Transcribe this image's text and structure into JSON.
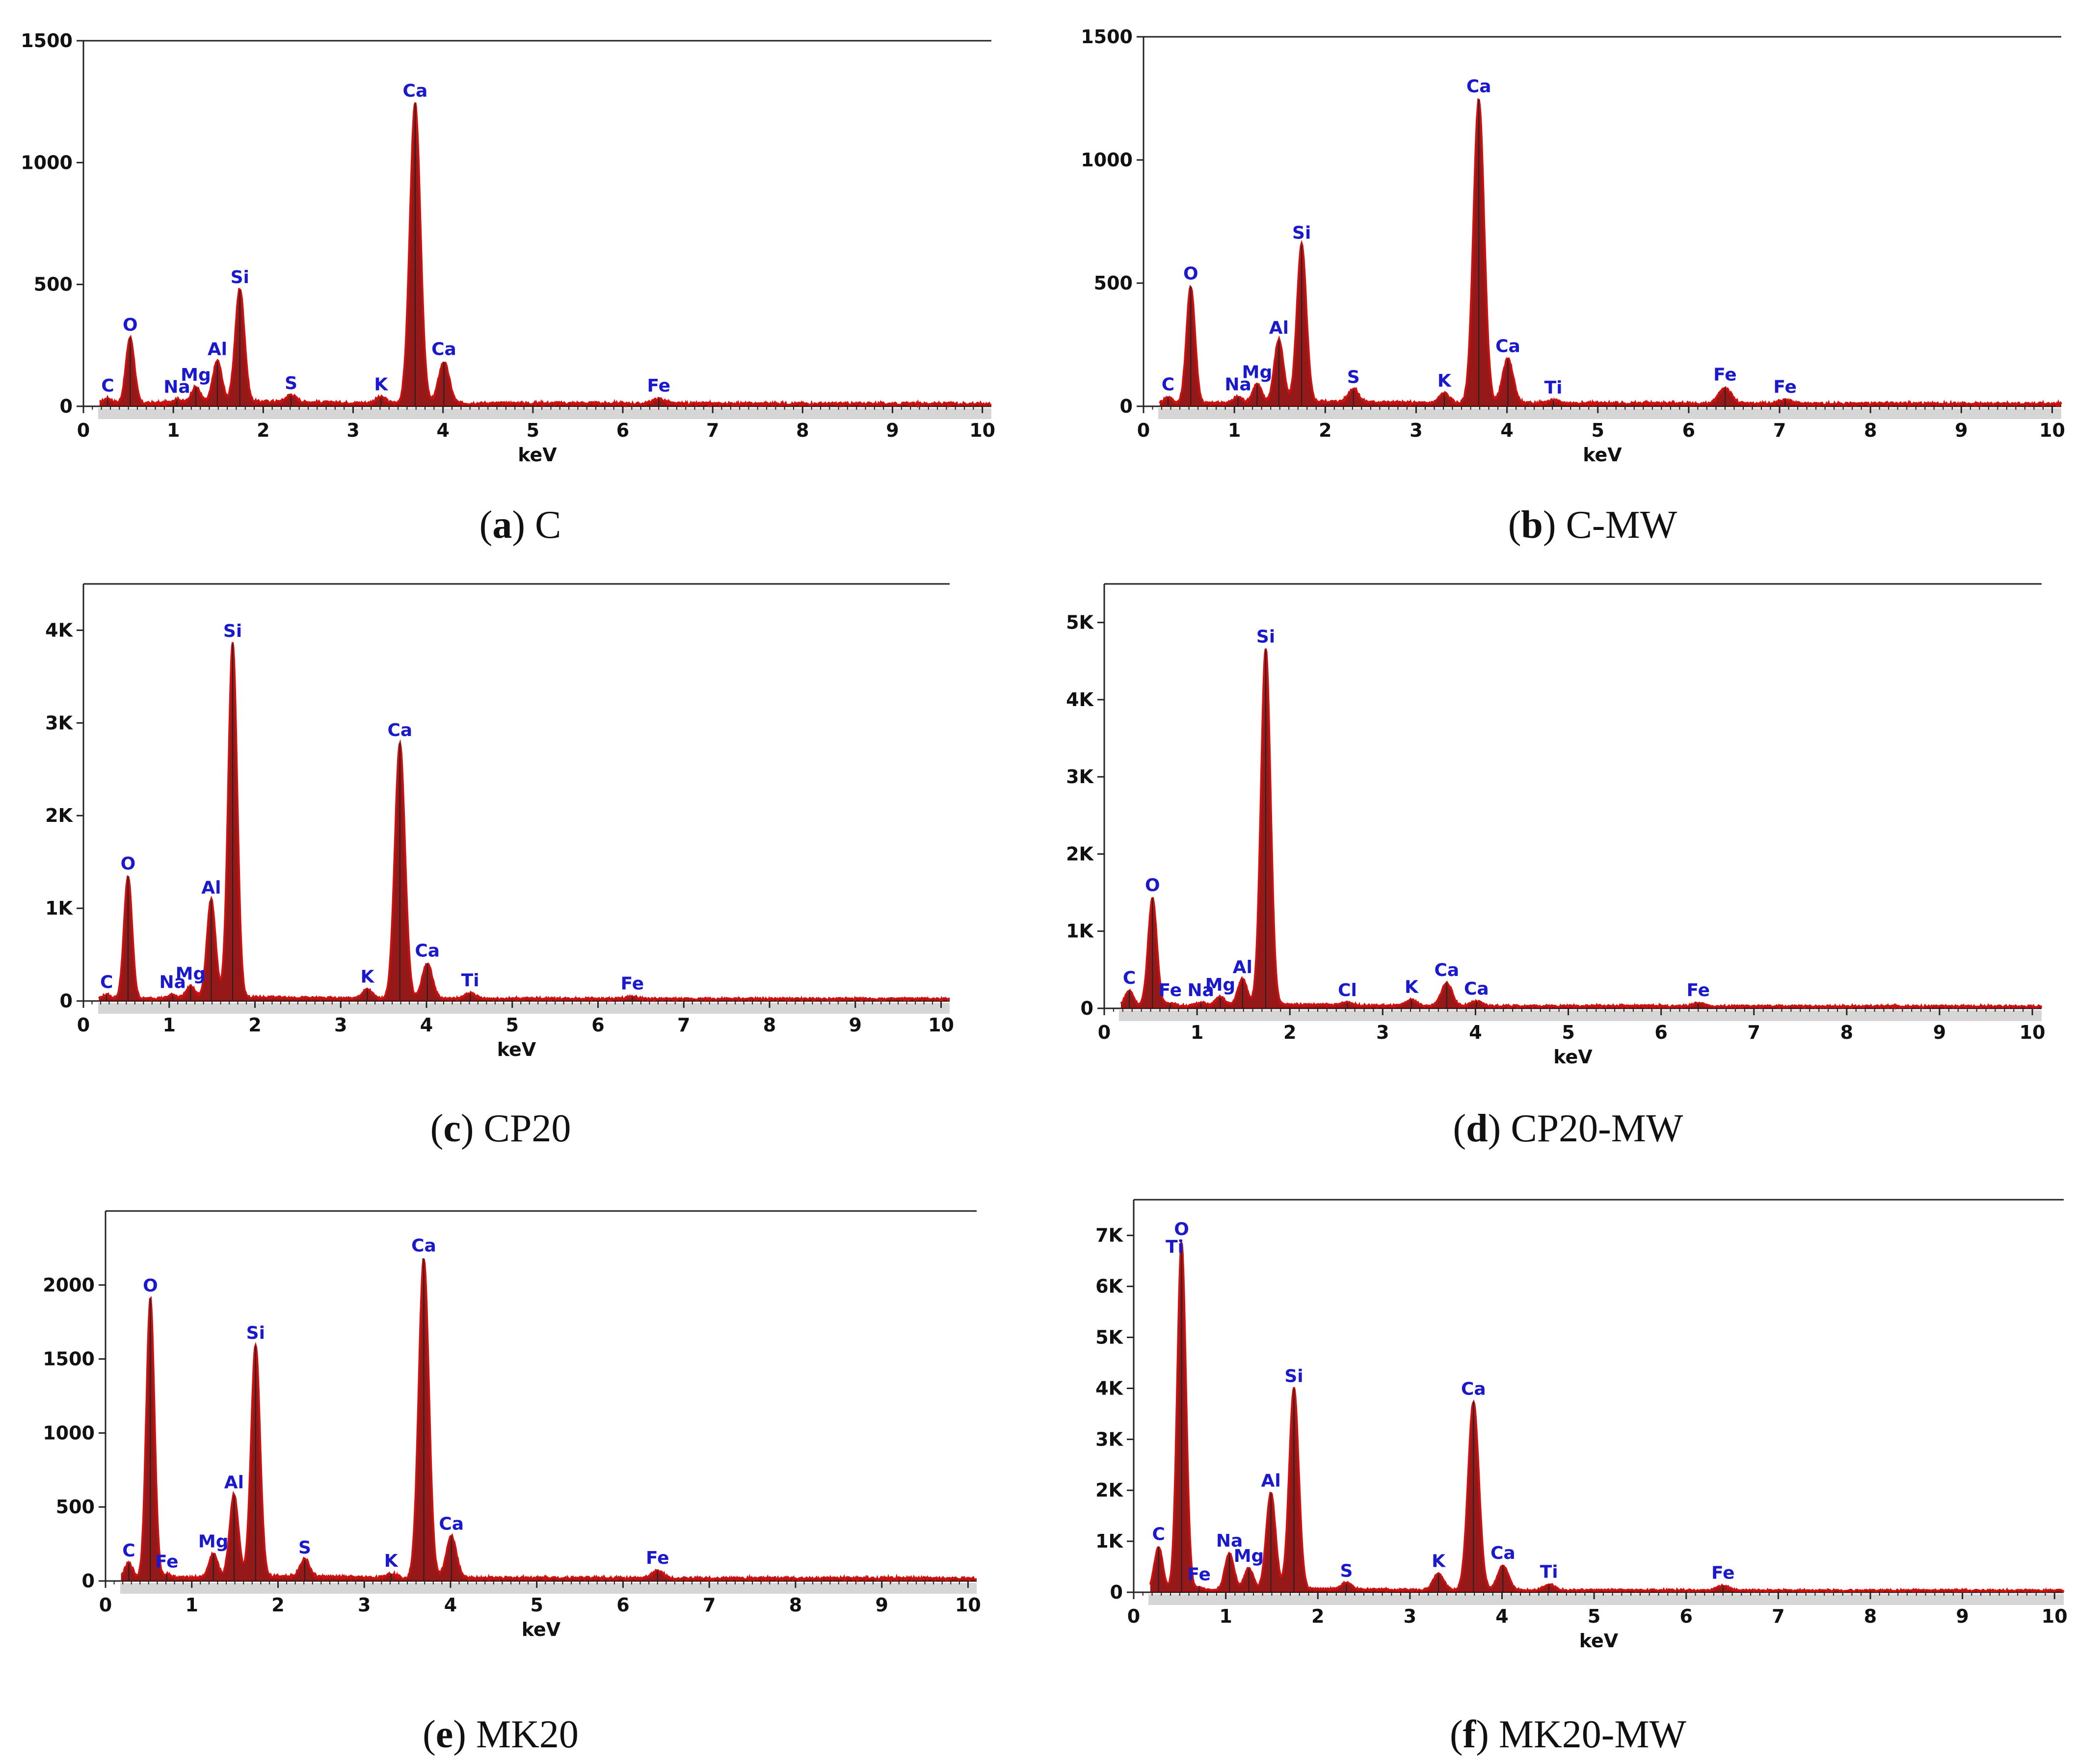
{
  "figure": {
    "panels": [
      {
        "letter": "a",
        "name": "C",
        "ytick_labels": [
          "0",
          "500",
          "1000",
          "1500"
        ]
      },
      {
        "letter": "b",
        "name": "C-MW",
        "ytick_labels": [
          "0",
          "500",
          "1000",
          "1500"
        ]
      },
      {
        "letter": "c",
        "name": "CP20",
        "ytick_labels": [
          "0",
          "1K",
          "2K",
          "3K",
          "4K"
        ]
      },
      {
        "letter": "d",
        "name": "CP20-MW",
        "ytick_labels": [
          "0",
          "1K",
          "2K",
          "3K",
          "4K",
          "5K"
        ]
      },
      {
        "letter": "e",
        "name": "MK20",
        "ytick_labels": [
          "0",
          "500",
          "1000",
          "1500",
          "2000"
        ]
      },
      {
        "letter": "f",
        "name": "MK20-MW",
        "ytick_labels": [
          "0",
          "1K",
          "2K",
          "3K",
          "4K",
          "5K",
          "6K",
          "7K"
        ]
      }
    ],
    "colors": {
      "spectrum": "#cc1111",
      "spectrum_fill": "#8b0000",
      "label": "#1a1acc",
      "axis": "#222222"
    }
  },
  "chart_data": [
    {
      "type": "line",
      "title": "(a) C",
      "xlabel": "keV",
      "ylabel": "",
      "xlim": [
        0,
        10.1
      ],
      "ylim": [
        0,
        1500
      ],
      "yticks": [
        0,
        500,
        1000,
        1500
      ],
      "xticks": [
        0,
        1,
        2,
        3,
        4,
        5,
        6,
        7,
        8,
        9,
        10
      ],
      "baseline": 12,
      "peaks": [
        {
          "label": "C",
          "kev": 0.27,
          "counts": 20
        },
        {
          "label": "O",
          "kev": 0.52,
          "counts": 270
        },
        {
          "label": "Na",
          "kev": 1.04,
          "counts": 15
        },
        {
          "label": "Mg",
          "kev": 1.25,
          "counts": 65
        },
        {
          "label": "Al",
          "kev": 1.49,
          "counts": 170
        },
        {
          "label": "Si",
          "kev": 1.74,
          "counts": 465
        },
        {
          "label": "S",
          "kev": 2.31,
          "counts": 30
        },
        {
          "label": "K",
          "kev": 3.31,
          "counts": 25
        },
        {
          "label": "Ca",
          "kev": 3.69,
          "counts": 1230
        },
        {
          "label": "Ca",
          "kev": 4.01,
          "counts": 170
        },
        {
          "label": "Fe",
          "kev": 6.4,
          "counts": 20
        }
      ]
    },
    {
      "type": "line",
      "title": "(b) C-MW",
      "xlabel": "keV",
      "ylabel": "",
      "xlim": [
        0,
        10.1
      ],
      "ylim": [
        0,
        1500
      ],
      "yticks": [
        0,
        500,
        1000,
        1500
      ],
      "xticks": [
        0,
        1,
        2,
        3,
        4,
        5,
        6,
        7,
        8,
        9,
        10
      ],
      "baseline": 12,
      "peaks": [
        {
          "label": "C",
          "kev": 0.27,
          "counts": 25
        },
        {
          "label": "O",
          "kev": 0.52,
          "counts": 475
        },
        {
          "label": "Na",
          "kev": 1.04,
          "counts": 25
        },
        {
          "label": "Mg",
          "kev": 1.25,
          "counts": 75
        },
        {
          "label": "Al",
          "kev": 1.49,
          "counts": 255
        },
        {
          "label": "Si",
          "kev": 1.74,
          "counts": 640
        },
        {
          "label": "S",
          "kev": 2.31,
          "counts": 55
        },
        {
          "label": "K",
          "kev": 3.31,
          "counts": 40
        },
        {
          "label": "Ca",
          "kev": 3.69,
          "counts": 1235
        },
        {
          "label": "Ca",
          "kev": 4.01,
          "counts": 180
        },
        {
          "label": "Ti",
          "kev": 4.51,
          "counts": 12
        },
        {
          "label": "Fe",
          "kev": 6.4,
          "counts": 65
        },
        {
          "label": "Fe",
          "kev": 7.06,
          "counts": 15
        }
      ]
    },
    {
      "type": "line",
      "title": "(c) CP20",
      "xlabel": "keV",
      "ylabel": "",
      "xlim": [
        0,
        10.1
      ],
      "ylim": [
        0,
        4500
      ],
      "yticks": [
        0,
        1000,
        2000,
        3000,
        4000
      ],
      "xticks": [
        0,
        1,
        2,
        3,
        4,
        5,
        6,
        7,
        8,
        9,
        10
      ],
      "baseline": 25,
      "peaks": [
        {
          "label": "C",
          "kev": 0.27,
          "counts": 40
        },
        {
          "label": "O",
          "kev": 0.52,
          "counts": 1320
        },
        {
          "label": "Na",
          "kev": 1.04,
          "counts": 40
        },
        {
          "label": "Mg",
          "kev": 1.25,
          "counts": 130
        },
        {
          "label": "Al",
          "kev": 1.49,
          "counts": 1060
        },
        {
          "label": "Si",
          "kev": 1.74,
          "counts": 3830
        },
        {
          "label": "K",
          "kev": 3.31,
          "counts": 100
        },
        {
          "label": "Ca",
          "kev": 3.69,
          "counts": 2760
        },
        {
          "label": "Ca",
          "kev": 4.01,
          "counts": 380
        },
        {
          "label": "Ti",
          "kev": 4.51,
          "counts": 60
        },
        {
          "label": "Fe",
          "kev": 6.4,
          "counts": 25
        }
      ]
    },
    {
      "type": "line",
      "title": "(d) CP20-MW",
      "xlabel": "keV",
      "ylabel": "",
      "xlim": [
        0,
        10.1
      ],
      "ylim": [
        0,
        5500
      ],
      "yticks": [
        0,
        1000,
        2000,
        3000,
        4000,
        5000
      ],
      "xticks": [
        0,
        1,
        2,
        3,
        4,
        5,
        6,
        7,
        8,
        9,
        10
      ],
      "baseline": 30,
      "peaks": [
        {
          "label": "C",
          "kev": 0.27,
          "counts": 200
        },
        {
          "label": "O",
          "kev": 0.52,
          "counts": 1400
        },
        {
          "label": "Fe",
          "kev": 0.71,
          "counts": 40
        },
        {
          "label": "Na",
          "kev": 1.04,
          "counts": 40
        },
        {
          "label": "Mg",
          "kev": 1.25,
          "counts": 110
        },
        {
          "label": "Al",
          "kev": 1.49,
          "counts": 340
        },
        {
          "label": "Si",
          "kev": 1.74,
          "counts": 4620
        },
        {
          "label": "Cl",
          "kev": 2.62,
          "counts": 40
        },
        {
          "label": "K",
          "kev": 3.31,
          "counts": 80
        },
        {
          "label": "Ca",
          "kev": 3.69,
          "counts": 300
        },
        {
          "label": "Ca",
          "kev": 4.01,
          "counts": 60
        },
        {
          "label": "Fe",
          "kev": 6.4,
          "counts": 40
        }
      ]
    },
    {
      "type": "line",
      "title": "(e) MK20",
      "xlabel": "keV",
      "ylabel": "",
      "xlim": [
        0,
        10.1
      ],
      "ylim": [
        0,
        2500
      ],
      "yticks": [
        0,
        500,
        1000,
        1500,
        2000
      ],
      "xticks": [
        0,
        1,
        2,
        3,
        4,
        5,
        6,
        7,
        8,
        9,
        10
      ],
      "baseline": 20,
      "peaks": [
        {
          "label": "C",
          "kev": 0.27,
          "counts": 100
        },
        {
          "label": "O",
          "kev": 0.52,
          "counts": 1890
        },
        {
          "label": "Fe",
          "kev": 0.71,
          "counts": 25
        },
        {
          "label": "Mg",
          "kev": 1.25,
          "counts": 160
        },
        {
          "label": "Al",
          "kev": 1.49,
          "counts": 560
        },
        {
          "label": "Si",
          "kev": 1.74,
          "counts": 1570
        },
        {
          "label": "S",
          "kev": 2.31,
          "counts": 120
        },
        {
          "label": "K",
          "kev": 3.31,
          "counts": 30
        },
        {
          "label": "Ca",
          "kev": 3.69,
          "counts": 2160
        },
        {
          "label": "Ca",
          "kev": 4.01,
          "counts": 280
        },
        {
          "label": "Fe",
          "kev": 6.4,
          "counts": 50
        }
      ]
    },
    {
      "type": "line",
      "title": "(f) MK20-MW",
      "xlabel": "keV",
      "ylabel": "",
      "xlim": [
        0,
        10.1
      ],
      "ylim": [
        0,
        7700
      ],
      "yticks": [
        0,
        1000,
        2000,
        3000,
        4000,
        5000,
        6000,
        7000
      ],
      "xticks": [
        0,
        1,
        2,
        3,
        4,
        5,
        6,
        7,
        8,
        9,
        10
      ],
      "baseline": 40,
      "peaks": [
        {
          "label": "C",
          "kev": 0.27,
          "counts": 850
        },
        {
          "label": "O",
          "kev": 0.52,
          "counts": 6830,
          "stack": "Ti"
        },
        {
          "label": "Fe",
          "kev": 0.71,
          "counts": 60
        },
        {
          "label": "Na",
          "kev": 1.04,
          "counts": 720
        },
        {
          "label": "Mg",
          "kev": 1.25,
          "counts": 420
        },
        {
          "label": "Al",
          "kev": 1.49,
          "counts": 1900
        },
        {
          "label": "Si",
          "kev": 1.74,
          "counts": 3950
        },
        {
          "label": "S",
          "kev": 2.31,
          "counts": 130
        },
        {
          "label": "K",
          "kev": 3.31,
          "counts": 320
        },
        {
          "label": "Ca",
          "kev": 3.69,
          "counts": 3700
        },
        {
          "label": "Ca",
          "kev": 4.01,
          "counts": 480
        },
        {
          "label": "Ti",
          "kev": 4.51,
          "counts": 110
        },
        {
          "label": "Fe",
          "kev": 6.4,
          "counts": 90
        }
      ]
    }
  ]
}
